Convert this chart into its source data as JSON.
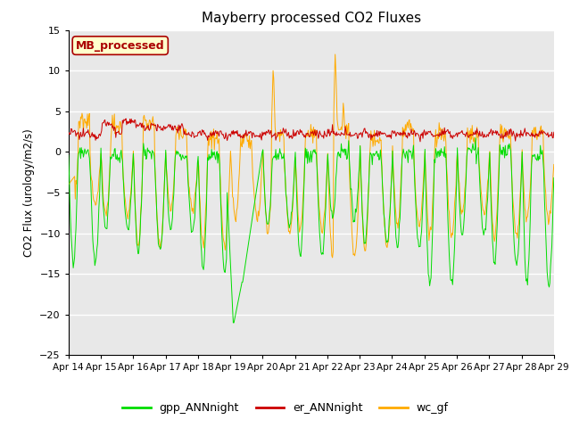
{
  "title": "Mayberry processed CO2 Fluxes",
  "ylabel": "CO2 Flux (urology/m2/s)",
  "ylim": [
    -25,
    15
  ],
  "yticks": [
    -25,
    -20,
    -15,
    -10,
    -5,
    0,
    5,
    10,
    15
  ],
  "n_days": 15,
  "points_per_day": 48,
  "colors": {
    "gpp": "#00dd00",
    "er": "#cc0000",
    "wc": "#ffaa00"
  },
  "legend_labels": [
    "gpp_ANNnight",
    "er_ANNnight",
    "wc_gf"
  ],
  "inset_label": "MB_processed",
  "inset_facecolor": "#ffffcc",
  "inset_edgecolor": "#aa0000",
  "fig_facecolor": "#ffffff",
  "plot_bg_color": "#e8e8e8",
  "xtick_labels": [
    "Apr 14",
    "Apr 15",
    "Apr 16",
    "Apr 17",
    "Apr 18",
    "Apr 19",
    "Apr 20",
    "Apr 21",
    "Apr 22",
    "Apr 23",
    "Apr 24",
    "Apr 25",
    "Apr 26",
    "Apr 27",
    "Apr 28",
    "Apr 29"
  ]
}
